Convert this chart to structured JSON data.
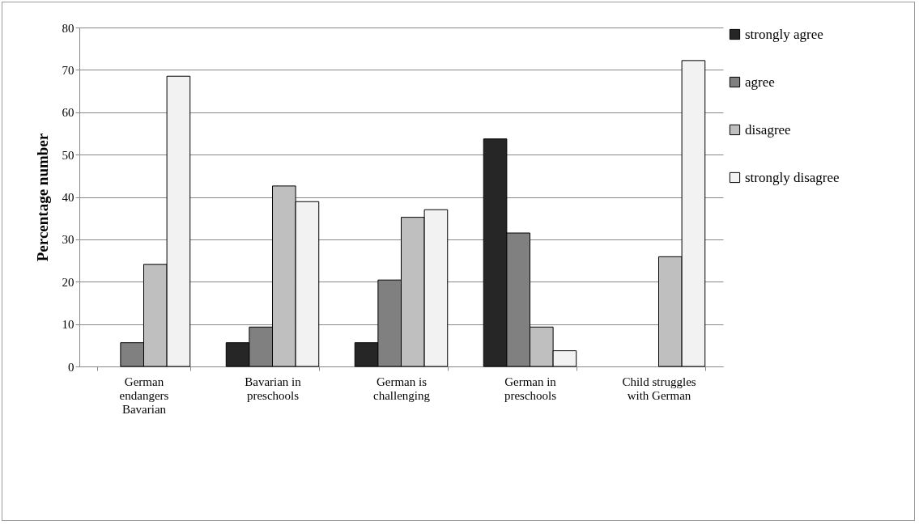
{
  "chart_data": {
    "type": "bar",
    "ylabel": "Percentage number",
    "categories": [
      "German endangers Bavarian",
      "Bavarian in preschools",
      "German is challenging",
      "German in preschools",
      "Child struggles with German"
    ],
    "series": [
      {
        "name": "strongly agree",
        "color": "#262626",
        "values": [
          null,
          5.6,
          5.6,
          53.7,
          null
        ]
      },
      {
        "name": "agree",
        "color": "#808080",
        "values": [
          5.6,
          9.3,
          20.4,
          31.5,
          null
        ]
      },
      {
        "name": "disagree",
        "color": "#bfbfbf",
        "values": [
          24.1,
          42.6,
          35.2,
          9.3,
          25.9
        ]
      },
      {
        "name": "strongly disagree",
        "color": "#f2f2f2",
        "values": [
          68.5,
          38.9,
          37.0,
          3.7,
          72.2
        ]
      }
    ],
    "ylim": [
      0,
      80
    ],
    "yticks": [
      0,
      10,
      20,
      30,
      40,
      50,
      60,
      70,
      80
    ],
    "grid": "y",
    "legend": "right"
  }
}
